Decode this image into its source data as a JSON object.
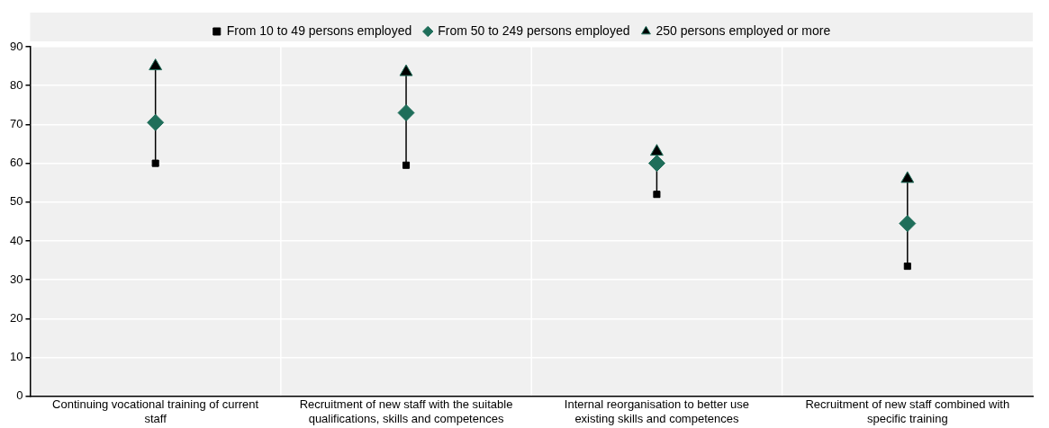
{
  "chart_data": {
    "type": "scatter",
    "categories": [
      "Continuing vocational training of current staff",
      "Recruitment of new staff with the suitable qualifications, skills and competences",
      "Internal reorganisation to better use existing skills and competences",
      "Recruitment of new staff combined with specific training"
    ],
    "series": [
      {
        "name": "From 10 to 49 persons employed",
        "color": "#000000",
        "marker": "square",
        "values": [
          60,
          59.5,
          52,
          33.5
        ]
      },
      {
        "name": "From 50 to 249 persons employed",
        "color": "#1f6e5a",
        "marker": "diamond",
        "values": [
          70.5,
          73,
          60,
          44.5
        ]
      },
      {
        "name": "250 persons employed or more",
        "color": "#000000",
        "marker": "triangle",
        "values": [
          85,
          83.5,
          63,
          56
        ]
      }
    ],
    "ylim": [
      0,
      90
    ],
    "yticks": [
      0,
      10,
      20,
      30,
      40,
      50,
      60,
      70,
      80,
      90
    ],
    "grid": true,
    "legend": "top"
  }
}
